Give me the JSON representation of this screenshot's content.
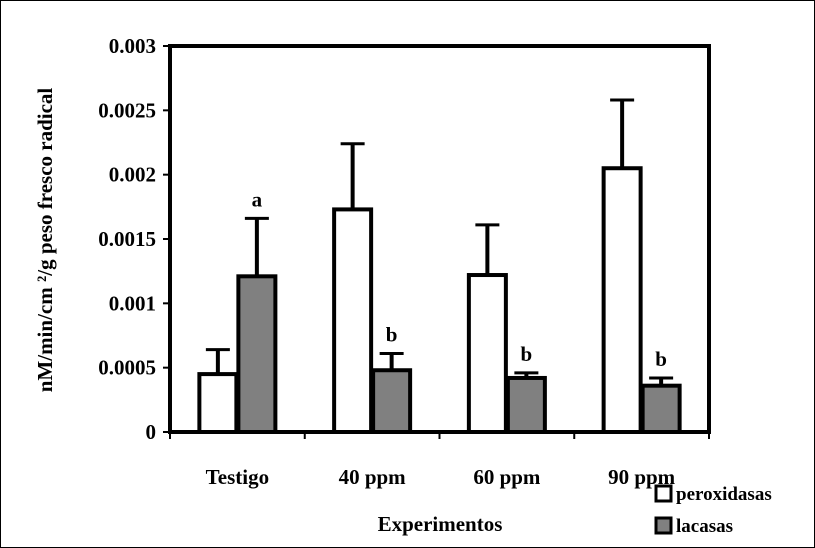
{
  "chart_data": {
    "type": "bar",
    "xlabel": "Experimentos",
    "ylabel": "nM/min/cm ²/g peso fresco radical",
    "categories": [
      "Testigo",
      "40 ppm",
      "60 ppm",
      "90 ppm"
    ],
    "ylim": [
      0,
      0.003
    ],
    "yticks": [
      "0",
      "0.0005",
      "0.001",
      "0.0015",
      "0.002",
      "0.0025",
      "0.003"
    ],
    "grid": false,
    "legend_position": "bottom-right",
    "series": [
      {
        "name": "peroxidasas",
        "color": "#ffffff",
        "values": [
          0.00045,
          0.00173,
          0.00122,
          0.00205
        ],
        "errors": [
          0.00019,
          0.00051,
          0.00039,
          0.00053
        ],
        "annotations": [
          "",
          "",
          "",
          ""
        ]
      },
      {
        "name": "lacasas",
        "color": "#808080",
        "values": [
          0.00121,
          0.00048,
          0.00042,
          0.00036
        ],
        "errors": [
          0.00045,
          0.00013,
          4e-05,
          6e-05
        ],
        "annotations": [
          "a",
          "b",
          "b",
          "b"
        ]
      }
    ]
  }
}
